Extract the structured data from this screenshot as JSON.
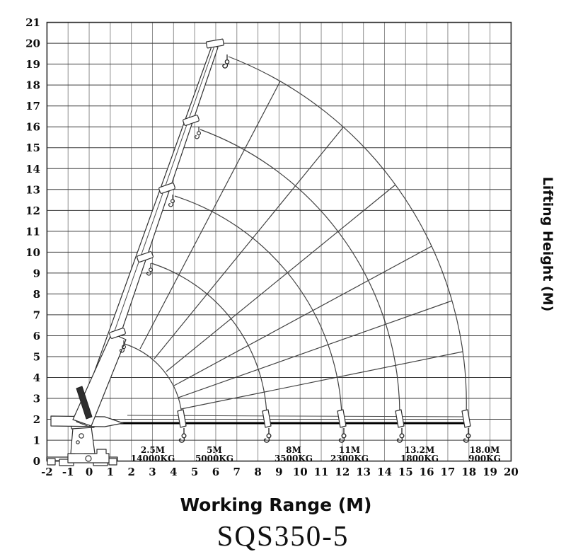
{
  "chart": {
    "model": "SQS350-5",
    "x_title": "Working Range (M)",
    "y_title": "Lifting Height (M)",
    "x_ticks": [
      "-2",
      "-1",
      "0",
      "1",
      "2",
      "3",
      "4",
      "5",
      "6",
      "7",
      "8",
      "9",
      "10",
      "11",
      "12",
      "13",
      "14",
      "15",
      "16",
      "17",
      "18",
      "19",
      "20"
    ],
    "y_ticks": [
      "0",
      "1",
      "2",
      "3",
      "4",
      "5",
      "6",
      "7",
      "8",
      "9",
      "10",
      "11",
      "12",
      "13",
      "14",
      "15",
      "16",
      "17",
      "18",
      "19",
      "20",
      "21"
    ],
    "capacities": [
      {
        "radius": "2.5M",
        "load": "14000KG"
      },
      {
        "radius": "5M",
        "load": "5000KG"
      },
      {
        "radius": "8M",
        "load": "3500KG"
      },
      {
        "radius": "11M",
        "load": "2300KG"
      },
      {
        "radius": "13.2M",
        "load": "1800KG"
      },
      {
        "radius": "18.0M",
        "load": "900KG"
      }
    ]
  },
  "chart_data": {
    "type": "line",
    "title": "SQS350-5",
    "xlabel": "Working Range (M)",
    "ylabel": "Lifting Height (M)",
    "xlim": [
      -2,
      20
    ],
    "ylim": [
      0,
      21
    ],
    "grid": true,
    "max_lifting_height_m": 20,
    "load_capacity_curve": [
      {
        "working_radius_m": 2.5,
        "capacity_kg": 14000
      },
      {
        "working_radius_m": 5,
        "capacity_kg": 5000
      },
      {
        "working_radius_m": 8,
        "capacity_kg": 3500
      },
      {
        "working_radius_m": 11,
        "capacity_kg": 2300
      },
      {
        "working_radius_m": 13.2,
        "capacity_kg": 1800
      },
      {
        "working_radius_m": 18.0,
        "capacity_kg": 900
      }
    ],
    "boom_tip_positions_m": [
      [
        1.4,
        6.1
      ],
      [
        2.8,
        9.9
      ],
      [
        3.8,
        13.2
      ],
      [
        5.0,
        16.4
      ],
      [
        6.2,
        20.0
      ]
    ],
    "ground_level_hook_radii_m": [
      4.5,
      8.5,
      12.0,
      14.8,
      17.9
    ]
  }
}
